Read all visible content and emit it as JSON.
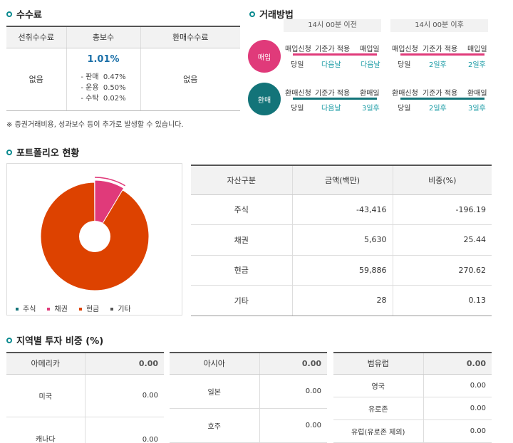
{
  "fees": {
    "title": "수수료",
    "headers": [
      "선취수수료",
      "총보수",
      "환매수수료"
    ],
    "upfront": "없음",
    "total": "1.01%",
    "breakdown": [
      {
        "label": "- 판매",
        "value": "0.47%"
      },
      {
        "label": "- 운용",
        "value": "0.50%"
      },
      {
        "label": "- 수탁",
        "value": "0.02%"
      }
    ],
    "redemption": "없음",
    "note": "※ 증권거래비용, 성과보수 등이 추가로 발생할 수 있습니다."
  },
  "trade": {
    "title": "거래방법",
    "before_label": "14시 00분 이전",
    "after_label": "14시 00분 이후",
    "buy": {
      "badge": "매입",
      "color": "#e03a7a",
      "before": {
        "steps": [
          "매입신청",
          "기준가 적용",
          "매입일"
        ],
        "days": [
          "당일",
          "다음날",
          "다음날"
        ]
      },
      "after": {
        "steps": [
          "매입신청",
          "기준가 적용",
          "매입일"
        ],
        "days": [
          "당일",
          "2일후",
          "2일후"
        ]
      }
    },
    "sell": {
      "badge": "환매",
      "color": "#137479",
      "before": {
        "steps": [
          "환매신청",
          "기준가 적용",
          "환매일"
        ],
        "days": [
          "당일",
          "다음날",
          "3일후"
        ]
      },
      "after": {
        "steps": [
          "환매신청",
          "기준가 적용",
          "환매일"
        ],
        "days": [
          "당일",
          "2일후",
          "3일후"
        ]
      }
    }
  },
  "portfolio": {
    "title": "포트폴리오 현황",
    "legend": [
      {
        "label": "주식",
        "color": "#137479"
      },
      {
        "label": "채권",
        "color": "#e03a7a"
      },
      {
        "label": "현금",
        "color": "#dd4200"
      },
      {
        "label": "기타",
        "color": "#555555"
      }
    ],
    "headers": [
      "자산구분",
      "금액(백만)",
      "비중(%)"
    ],
    "rows": [
      {
        "asset": "주식",
        "amount": "-43,416",
        "weight": "-196.19"
      },
      {
        "asset": "채권",
        "amount": "5,630",
        "weight": "25.44"
      },
      {
        "asset": "현금",
        "amount": "59,886",
        "weight": "270.62"
      },
      {
        "asset": "기타",
        "amount": "28",
        "weight": "0.13"
      }
    ]
  },
  "chart_data": {
    "type": "pie",
    "title": "",
    "categories": [
      "주식",
      "채권",
      "현금",
      "기타"
    ],
    "values": [
      -196.19,
      25.44,
      270.62,
      0.13
    ],
    "colors": [
      "#137479",
      "#e03a7a",
      "#dd4200",
      "#555555"
    ]
  },
  "regions": {
    "title": "지역별 투자 비중 (%)",
    "groups": [
      {
        "name": "아메리카",
        "total": "0.00",
        "items": [
          {
            "name": "미국",
            "value": "0.00"
          },
          {
            "name": "캐나다",
            "value": "0.00"
          }
        ]
      },
      {
        "name": "아시아",
        "total": "0.00",
        "items": [
          {
            "name": "일본",
            "value": "0.00"
          },
          {
            "name": "호주",
            "value": "0.00"
          }
        ]
      },
      {
        "name": "범유럽",
        "total": "0.00",
        "items": [
          {
            "name": "영국",
            "value": "0.00"
          },
          {
            "name": "유로존",
            "value": "0.00"
          },
          {
            "name": "유럽(유로존 제외)",
            "value": "0.00"
          }
        ]
      }
    ]
  }
}
